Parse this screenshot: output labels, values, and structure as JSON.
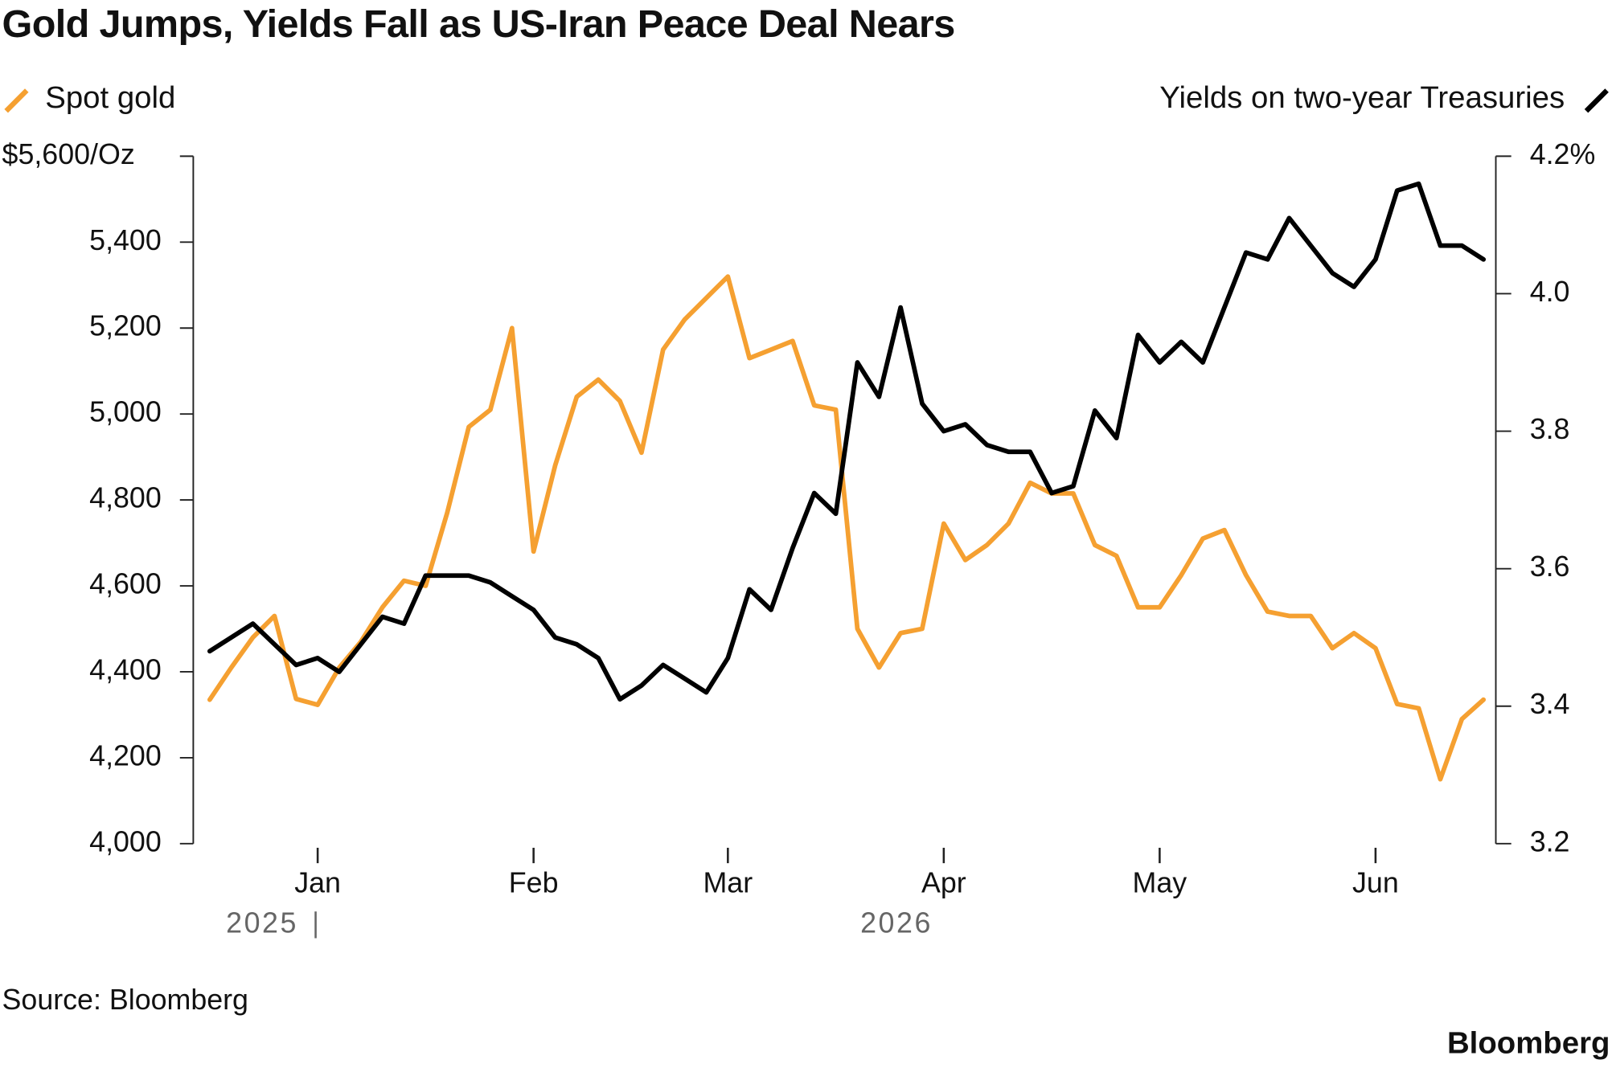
{
  "chart_data": {
    "type": "line",
    "title": "Gold Jumps, Yields Fall as US-Iran Peace Deal Nears",
    "categories": [
      null,
      null,
      null,
      null,
      null,
      "Jan",
      null,
      null,
      null,
      null,
      null,
      null,
      null,
      null,
      null,
      "Feb",
      null,
      null,
      null,
      null,
      null,
      null,
      null,
      null,
      "Mar",
      null,
      null,
      null,
      null,
      null,
      null,
      null,
      null,
      null,
      "Apr",
      null,
      null,
      null,
      null,
      null,
      null,
      null,
      null,
      null,
      "May",
      null,
      null,
      null,
      null,
      null,
      null,
      null,
      null,
      null,
      "Jun",
      null,
      null,
      null,
      null,
      null
    ],
    "year_labels": [
      "2025",
      "2026"
    ],
    "series": [
      {
        "name": "Spot gold",
        "color": "#f5a031",
        "values": [
          4335,
          4410,
          4480,
          4530,
          4337,
          4323,
          4410,
          4470,
          4550,
          4612,
          4600,
          4770,
          4970,
          5010,
          5200,
          4680,
          4880,
          5040,
          5080,
          5030,
          4910,
          5150,
          5220,
          5270,
          5320,
          5130,
          5150,
          5170,
          5020,
          5010,
          4500,
          4410,
          4490,
          4500,
          4745,
          4660,
          4695,
          4745,
          4840,
          4815,
          4815,
          4695,
          4670,
          4550,
          4550,
          4625,
          4710,
          4730,
          4625,
          4540,
          4530,
          4530,
          4455,
          4490,
          4455,
          4325,
          4315,
          4150,
          4290,
          4335
        ]
      },
      {
        "name": "Yields on two-year Treasuries",
        "color": "#000000",
        "axis": "y2",
        "values": [
          3.48,
          3.5,
          3.52,
          3.49,
          3.46,
          3.47,
          3.45,
          3.49,
          3.53,
          3.52,
          3.59,
          3.59,
          3.59,
          3.58,
          3.56,
          3.54,
          3.5,
          3.49,
          3.47,
          3.41,
          3.43,
          3.46,
          3.44,
          3.42,
          3.47,
          3.57,
          3.54,
          3.63,
          3.71,
          3.68,
          3.9,
          3.85,
          3.98,
          3.84,
          3.8,
          3.81,
          3.78,
          3.77,
          3.77,
          3.71,
          3.72,
          3.83,
          3.79,
          3.94,
          3.9,
          3.93,
          3.9,
          3.98,
          4.06,
          4.05,
          4.11,
          4.07,
          4.03,
          4.01,
          4.05,
          4.15,
          4.16,
          4.07,
          4.07,
          4.05
        ]
      }
    ],
    "ylim": [
      4000,
      5600
    ],
    "yticks": [
      {
        "value": 4000,
        "label": "4,000"
      },
      {
        "value": 4200,
        "label": "4,200"
      },
      {
        "value": 4400,
        "label": "4,400"
      },
      {
        "value": 4600,
        "label": "4,600"
      },
      {
        "value": 4800,
        "label": "4,800"
      },
      {
        "value": 5000,
        "label": "5,000"
      },
      {
        "value": 5200,
        "label": "5,200"
      },
      {
        "value": 5400,
        "label": "5,400"
      },
      {
        "value": 5600,
        "label": "$5,600/Oz"
      }
    ],
    "y2lim": [
      3.2,
      4.2
    ],
    "y2ticks": [
      3.2,
      3.4,
      3.6,
      3.8,
      {
        "value": 4,
        "label": "4.0"
      },
      {
        "value": 4.2,
        "label": "4.2%"
      }
    ],
    "grid": false,
    "source": "Source: Bloomberg",
    "brand": "Bloomberg"
  }
}
